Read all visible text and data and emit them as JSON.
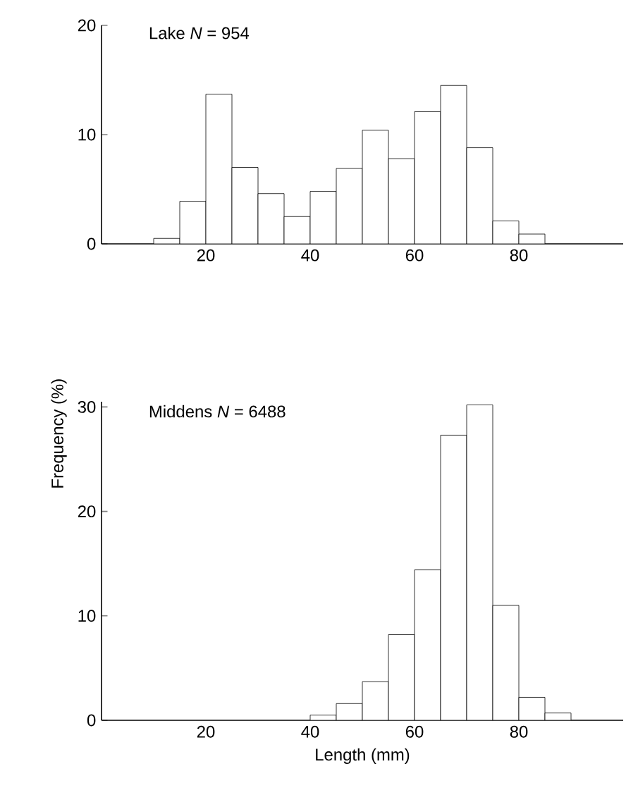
{
  "chart_data": [
    {
      "type": "histogram",
      "title": "Lake *N* = 954",
      "color": "#ffffff",
      "bins": [
        10,
        15,
        20,
        25,
        30,
        35,
        40,
        45,
        50,
        55,
        60,
        65,
        70,
        75,
        80,
        85
      ],
      "values": [
        0.5,
        3.9,
        13.7,
        7.0,
        4.6,
        2.5,
        4.8,
        6.9,
        10.4,
        7.8,
        12.1,
        14.5,
        8.8,
        2.1,
        0.9
      ],
      "xlim": [
        0,
        100
      ],
      "ylim": [
        0,
        20
      ],
      "xticks": [
        20,
        40,
        60,
        80
      ],
      "yticks": [
        0,
        10,
        20
      ]
    },
    {
      "type": "histogram",
      "title": "Middens *N* = 6488",
      "xlabel": "Length (mm)",
      "ylabel": "Frequency (%)",
      "color": "#ffffff",
      "bins": [
        40,
        45,
        50,
        55,
        60,
        65,
        70,
        75,
        80,
        85,
        90
      ],
      "values": [
        0.5,
        1.6,
        3.7,
        8.2,
        14.4,
        27.3,
        30.2,
        11.0,
        2.2,
        0.7
      ],
      "xlim": [
        0,
        100
      ],
      "ylim": [
        0,
        30.5
      ],
      "xticks": [
        20,
        40,
        60,
        80
      ],
      "yticks": [
        0,
        10,
        20,
        30
      ]
    }
  ]
}
